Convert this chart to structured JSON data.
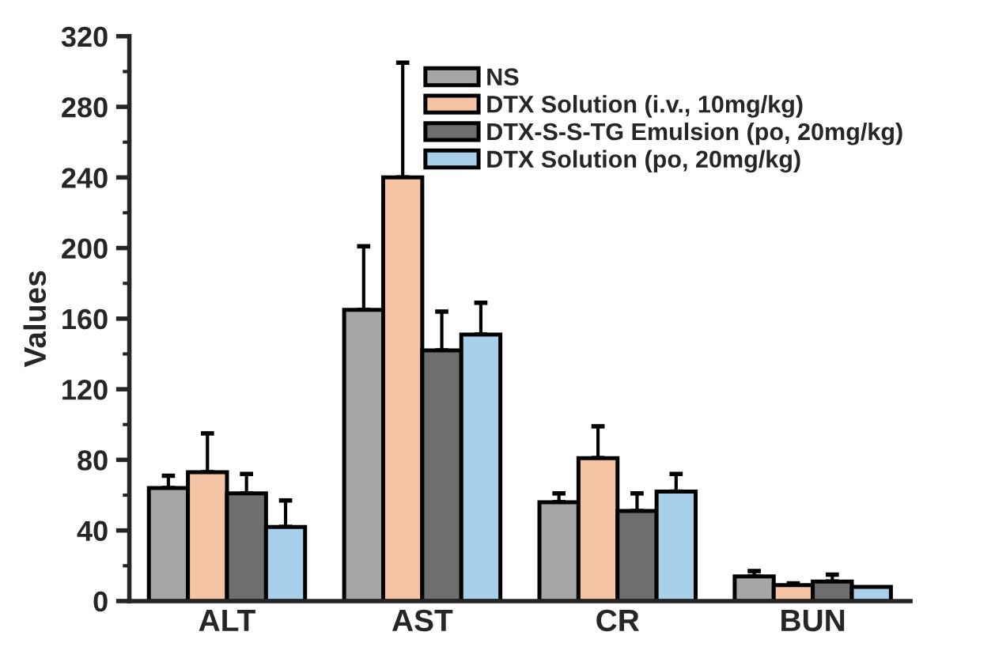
{
  "chart_data": {
    "type": "bar",
    "ylabel": "Values",
    "categories": [
      "ALT",
      "AST",
      "CR",
      "BUN"
    ],
    "series": [
      {
        "name": "NS",
        "color": "#a6a6a6",
        "values": [
          64,
          165,
          56,
          14
        ],
        "errors": [
          [
            64,
            71
          ],
          [
            165,
            201
          ],
          [
            56,
            61
          ],
          [
            14,
            17
          ]
        ]
      },
      {
        "name": "DTX Solution (i.v., 10mg/kg)",
        "color": "#f4c4a4",
        "values": [
          73,
          240,
          81,
          9
        ],
        "errors": [
          [
            73,
            95
          ],
          [
            240,
            305
          ],
          [
            81,
            99
          ],
          [
            9,
            10
          ]
        ]
      },
      {
        "name": "DTX-S-S-TG Emulsion (po, 20mg/kg)",
        "color": "#6e6e6e",
        "values": [
          61,
          142,
          51,
          11
        ],
        "errors": [
          [
            61,
            72
          ],
          [
            142,
            164
          ],
          [
            51,
            61
          ],
          [
            11,
            15
          ]
        ]
      },
      {
        "name": "DTX Solution (po, 20mg/kg)",
        "color": "#a8d0ea",
        "values": [
          42,
          151,
          62,
          8
        ],
        "errors": [
          [
            42,
            57
          ],
          [
            151,
            169
          ],
          [
            62,
            72
          ],
          null
        ]
      }
    ],
    "ylim": [
      0,
      320
    ],
    "yticks": [
      0,
      40,
      80,
      120,
      160,
      200,
      240,
      280,
      320
    ],
    "grid": false,
    "legend": "top"
  }
}
